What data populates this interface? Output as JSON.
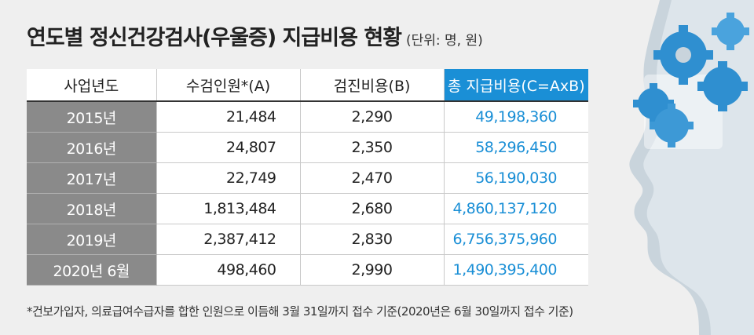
{
  "title": "연도별 정신건강검사(우울증) 지급비용 현황",
  "unit": "(단위: 명, 원)",
  "table": {
    "headers": [
      "사업년도",
      "수검인원*(A)",
      "검진비용(B)",
      "총 지급비용(C=AxB)"
    ],
    "rows": [
      {
        "year": "2015년",
        "people": "21,484",
        "cost": "2,290",
        "total": "49,198,360"
      },
      {
        "year": "2016년",
        "people": "24,807",
        "cost": "2,350",
        "total": "58,296,450"
      },
      {
        "year": "2017년",
        "people": "22,749",
        "cost": "2,470",
        "total": "56,190,030"
      },
      {
        "year": "2018년",
        "people": "1,813,484",
        "cost": "2,680",
        "total": "4,860,137,120"
      },
      {
        "year": "2019년",
        "people": "2,387,412",
        "cost": "2,830",
        "total": "6,756,375,960"
      },
      {
        "year": "2020년 6월",
        "people": "498,460",
        "cost": "2,990",
        "total": "1,490,395,400"
      }
    ]
  },
  "footnote": "*건보가입자, 의료급여수급자를 합한 인원으로 이듬해 3월 31일까지 접수 기준(2020년은 6월 30일까지 접수 기준)",
  "colors": {
    "accent": "#1a8fd6",
    "year_cell": "#8a8a8a"
  },
  "decoration": "head-with-gears-illustration"
}
